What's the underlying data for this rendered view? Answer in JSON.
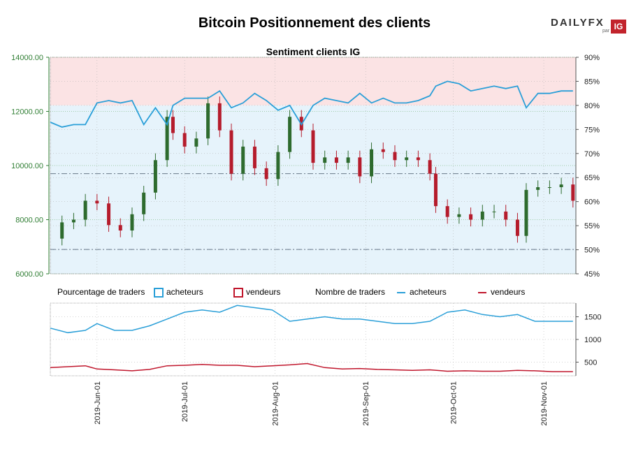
{
  "title": "Bitcoin Positionnement des clients",
  "subtitle": "Sentiment clients IG",
  "logo": {
    "brand": "DAILYFX",
    "par": "par",
    "ig": "IG"
  },
  "legend": {
    "pct_title": "Pourcentage de traders",
    "pct_buyers": "acheteurs",
    "pct_sellers": "vendeurs",
    "count_title": "Nombre de traders",
    "count_buyers": "acheteurs",
    "count_sellers": "vendeurs"
  },
  "colors": {
    "buyers": "#2a9fd8",
    "sellers": "#c0162c",
    "up_candle": "#2e6b2e",
    "down_candle": "#b51c2c",
    "sell_zone": "#fbe3e4",
    "buy_zone": "#e6f3fb"
  },
  "chart_data": [
    {
      "type": "candlestick",
      "title": "Sentiment clients IG",
      "left_axis": {
        "ticks": [
          "6000.00",
          "8000.00",
          "10000.00",
          "12000.00",
          "14000.00"
        ],
        "ylim": [
          6000,
          14000
        ]
      },
      "right_axis": {
        "ticks": [
          "45%",
          "50%",
          "55%",
          "60%",
          "65%",
          "70%",
          "75%",
          "80%",
          "85%",
          "90%"
        ],
        "ylim": [
          45,
          90
        ]
      },
      "x_ticks": [
        "2019-Jun-01",
        "2019-Jul-01",
        "2019-Aug-01",
        "2019-Sep-01",
        "2019-Oct-01",
        "2019-Nov-01"
      ],
      "x_range": [
        "2019-05-16",
        "2019-11-12"
      ],
      "reference_lines": [
        9700,
        6900
      ],
      "price_close": [
        [
          "2019-05-16",
          7300
        ],
        [
          "2019-05-20",
          7900
        ],
        [
          "2019-05-24",
          8000
        ],
        [
          "2019-05-28",
          8700
        ],
        [
          "2019-06-01",
          8600
        ],
        [
          "2019-06-05",
          7800
        ],
        [
          "2019-06-09",
          7600
        ],
        [
          "2019-06-13",
          8200
        ],
        [
          "2019-06-17",
          9000
        ],
        [
          "2019-06-21",
          10200
        ],
        [
          "2019-06-25",
          11800
        ],
        [
          "2019-06-27",
          11200
        ],
        [
          "2019-07-01",
          10700
        ],
        [
          "2019-07-05",
          11000
        ],
        [
          "2019-07-09",
          12300
        ],
        [
          "2019-07-13",
          11300
        ],
        [
          "2019-07-17",
          9700
        ],
        [
          "2019-07-21",
          10700
        ],
        [
          "2019-07-25",
          9900
        ],
        [
          "2019-07-29",
          9500
        ],
        [
          "2019-08-02",
          10500
        ],
        [
          "2019-08-06",
          11800
        ],
        [
          "2019-08-10",
          11300
        ],
        [
          "2019-08-14",
          10100
        ],
        [
          "2019-08-18",
          10300
        ],
        [
          "2019-08-22",
          10100
        ],
        [
          "2019-08-26",
          10300
        ],
        [
          "2019-08-30",
          9600
        ],
        [
          "2019-09-03",
          10600
        ],
        [
          "2019-09-07",
          10500
        ],
        [
          "2019-09-11",
          10200
        ],
        [
          "2019-09-15",
          10300
        ],
        [
          "2019-09-19",
          10200
        ],
        [
          "2019-09-23",
          9700
        ],
        [
          "2019-09-25",
          8500
        ],
        [
          "2019-09-29",
          8100
        ],
        [
          "2019-10-03",
          8200
        ],
        [
          "2019-10-07",
          8000
        ],
        [
          "2019-10-11",
          8300
        ],
        [
          "2019-10-15",
          8300
        ],
        [
          "2019-10-19",
          8000
        ],
        [
          "2019-10-23",
          7400
        ],
        [
          "2019-10-26",
          9100
        ],
        [
          "2019-10-30",
          9200
        ],
        [
          "2019-11-03",
          9200
        ],
        [
          "2019-11-07",
          9300
        ],
        [
          "2019-11-11",
          8700
        ]
      ],
      "pct_long": [
        [
          "2019-05-16",
          76.5
        ],
        [
          "2019-05-20",
          75.5
        ],
        [
          "2019-05-24",
          76.0
        ],
        [
          "2019-05-28",
          76.0
        ],
        [
          "2019-06-01",
          80.5
        ],
        [
          "2019-06-05",
          81.0
        ],
        [
          "2019-06-09",
          80.5
        ],
        [
          "2019-06-13",
          81.0
        ],
        [
          "2019-06-17",
          76.0
        ],
        [
          "2019-06-21",
          79.5
        ],
        [
          "2019-06-25",
          76.0
        ],
        [
          "2019-06-27",
          80.0
        ],
        [
          "2019-07-01",
          81.5
        ],
        [
          "2019-07-05",
          81.5
        ],
        [
          "2019-07-09",
          81.5
        ],
        [
          "2019-07-13",
          83.0
        ],
        [
          "2019-07-17",
          79.5
        ],
        [
          "2019-07-21",
          80.5
        ],
        [
          "2019-07-25",
          82.5
        ],
        [
          "2019-07-29",
          81.0
        ],
        [
          "2019-08-02",
          79.0
        ],
        [
          "2019-08-06",
          80.0
        ],
        [
          "2019-08-10",
          76.0
        ],
        [
          "2019-08-14",
          80.0
        ],
        [
          "2019-08-18",
          81.5
        ],
        [
          "2019-08-22",
          81.0
        ],
        [
          "2019-08-26",
          80.5
        ],
        [
          "2019-08-30",
          82.5
        ],
        [
          "2019-09-03",
          80.5
        ],
        [
          "2019-09-07",
          81.5
        ],
        [
          "2019-09-11",
          80.5
        ],
        [
          "2019-09-15",
          80.5
        ],
        [
          "2019-09-19",
          81.0
        ],
        [
          "2019-09-23",
          82.0
        ],
        [
          "2019-09-25",
          84.0
        ],
        [
          "2019-09-29",
          85.0
        ],
        [
          "2019-10-03",
          84.5
        ],
        [
          "2019-10-07",
          83.0
        ],
        [
          "2019-10-11",
          83.5
        ],
        [
          "2019-10-15",
          84.0
        ],
        [
          "2019-10-19",
          83.5
        ],
        [
          "2019-10-23",
          84.0
        ],
        [
          "2019-10-26",
          79.5
        ],
        [
          "2019-10-30",
          82.5
        ],
        [
          "2019-11-03",
          82.5
        ],
        [
          "2019-11-07",
          83.0
        ],
        [
          "2019-11-11",
          83.0
        ]
      ]
    },
    {
      "type": "line",
      "title": "Nombre de traders",
      "right_axis": {
        "ticks": [
          "500",
          "1000",
          "1500"
        ],
        "ylim": [
          200,
          1800
        ]
      },
      "series": [
        {
          "name": "acheteurs",
          "color": "#2a9fd8",
          "values": [
            [
              "2019-05-16",
              1250
            ],
            [
              "2019-05-22",
              1150
            ],
            [
              "2019-05-28",
              1200
            ],
            [
              "2019-06-01",
              1350
            ],
            [
              "2019-06-07",
              1200
            ],
            [
              "2019-06-13",
              1200
            ],
            [
              "2019-06-19",
              1300
            ],
            [
              "2019-06-25",
              1450
            ],
            [
              "2019-07-01",
              1600
            ],
            [
              "2019-07-07",
              1650
            ],
            [
              "2019-07-13",
              1600
            ],
            [
              "2019-07-19",
              1750
            ],
            [
              "2019-07-25",
              1700
            ],
            [
              "2019-07-31",
              1650
            ],
            [
              "2019-08-06",
              1400
            ],
            [
              "2019-08-12",
              1450
            ],
            [
              "2019-08-18",
              1500
            ],
            [
              "2019-08-24",
              1450
            ],
            [
              "2019-08-30",
              1450
            ],
            [
              "2019-09-05",
              1400
            ],
            [
              "2019-09-11",
              1350
            ],
            [
              "2019-09-17",
              1350
            ],
            [
              "2019-09-23",
              1400
            ],
            [
              "2019-09-29",
              1600
            ],
            [
              "2019-10-05",
              1650
            ],
            [
              "2019-10-11",
              1550
            ],
            [
              "2019-10-17",
              1500
            ],
            [
              "2019-10-23",
              1550
            ],
            [
              "2019-10-29",
              1400
            ],
            [
              "2019-11-04",
              1400
            ],
            [
              "2019-11-11",
              1400
            ]
          ]
        },
        {
          "name": "vendeurs",
          "color": "#c0162c",
          "values": [
            [
              "2019-05-16",
              380
            ],
            [
              "2019-05-22",
              400
            ],
            [
              "2019-05-28",
              420
            ],
            [
              "2019-06-01",
              350
            ],
            [
              "2019-06-07",
              330
            ],
            [
              "2019-06-13",
              310
            ],
            [
              "2019-06-19",
              340
            ],
            [
              "2019-06-25",
              420
            ],
            [
              "2019-07-01",
              430
            ],
            [
              "2019-07-07",
              450
            ],
            [
              "2019-07-13",
              430
            ],
            [
              "2019-07-19",
              430
            ],
            [
              "2019-07-25",
              400
            ],
            [
              "2019-07-31",
              420
            ],
            [
              "2019-08-06",
              440
            ],
            [
              "2019-08-12",
              470
            ],
            [
              "2019-08-18",
              380
            ],
            [
              "2019-08-24",
              350
            ],
            [
              "2019-08-30",
              360
            ],
            [
              "2019-09-05",
              340
            ],
            [
              "2019-09-11",
              330
            ],
            [
              "2019-09-17",
              320
            ],
            [
              "2019-09-23",
              330
            ],
            [
              "2019-09-29",
              300
            ],
            [
              "2019-10-05",
              310
            ],
            [
              "2019-10-11",
              300
            ],
            [
              "2019-10-17",
              300
            ],
            [
              "2019-10-23",
              320
            ],
            [
              "2019-10-29",
              310
            ],
            [
              "2019-11-04",
              290
            ],
            [
              "2019-11-11",
              290
            ]
          ]
        }
      ]
    }
  ]
}
